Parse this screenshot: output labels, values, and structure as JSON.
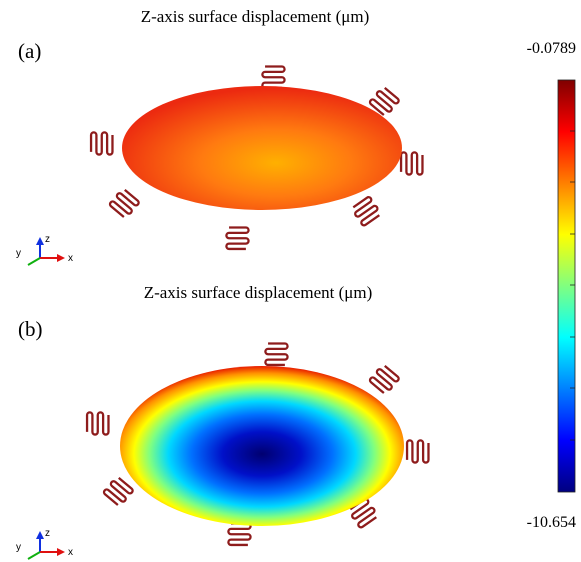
{
  "panels": [
    {
      "label": "(a)",
      "title": "Z-axis surface displacement (μm)"
    },
    {
      "label": "(b)",
      "title": "Z-axis surface displacement (μm)"
    }
  ],
  "colorbar": {
    "max_label": "-0.0789",
    "min_label": "-10.654"
  },
  "axes": {
    "x": "x",
    "y": "y",
    "z": "z"
  }
}
